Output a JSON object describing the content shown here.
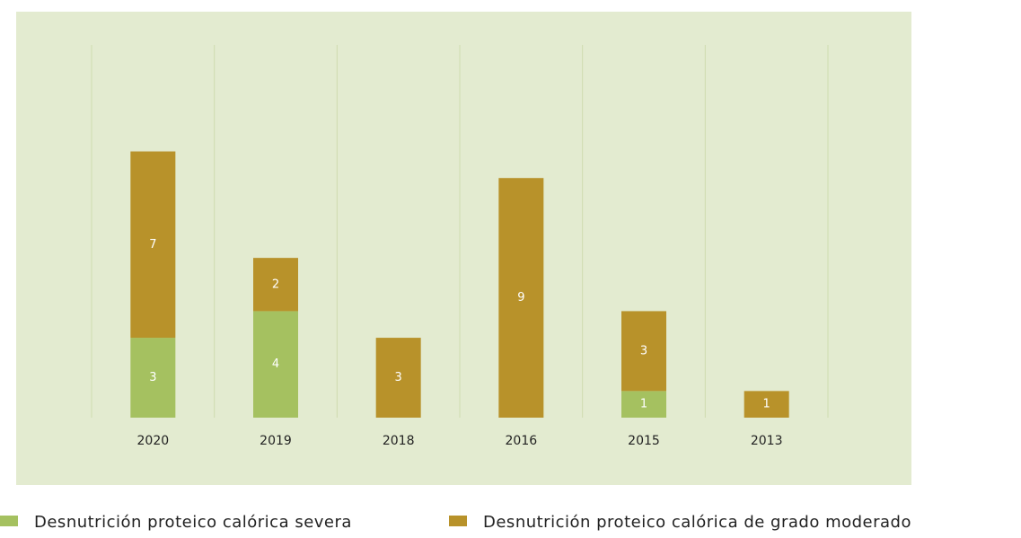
{
  "chart_data": {
    "type": "stacked-bar",
    "categories": [
      "2020",
      "2019",
      "2018",
      "2016",
      "2015",
      "2013"
    ],
    "series": [
      {
        "name": "Desnutrición proteico calórica severa",
        "color": "#a5c160",
        "values": [
          3,
          4,
          null,
          null,
          1,
          null
        ]
      },
      {
        "name": "Desnutrición proteico calórica de grado moderado",
        "color": "#b8922a",
        "values": [
          7,
          2,
          3,
          9,
          3,
          1
        ]
      }
    ],
    "ylim": [
      0,
      14
    ],
    "grid": true
  }
}
